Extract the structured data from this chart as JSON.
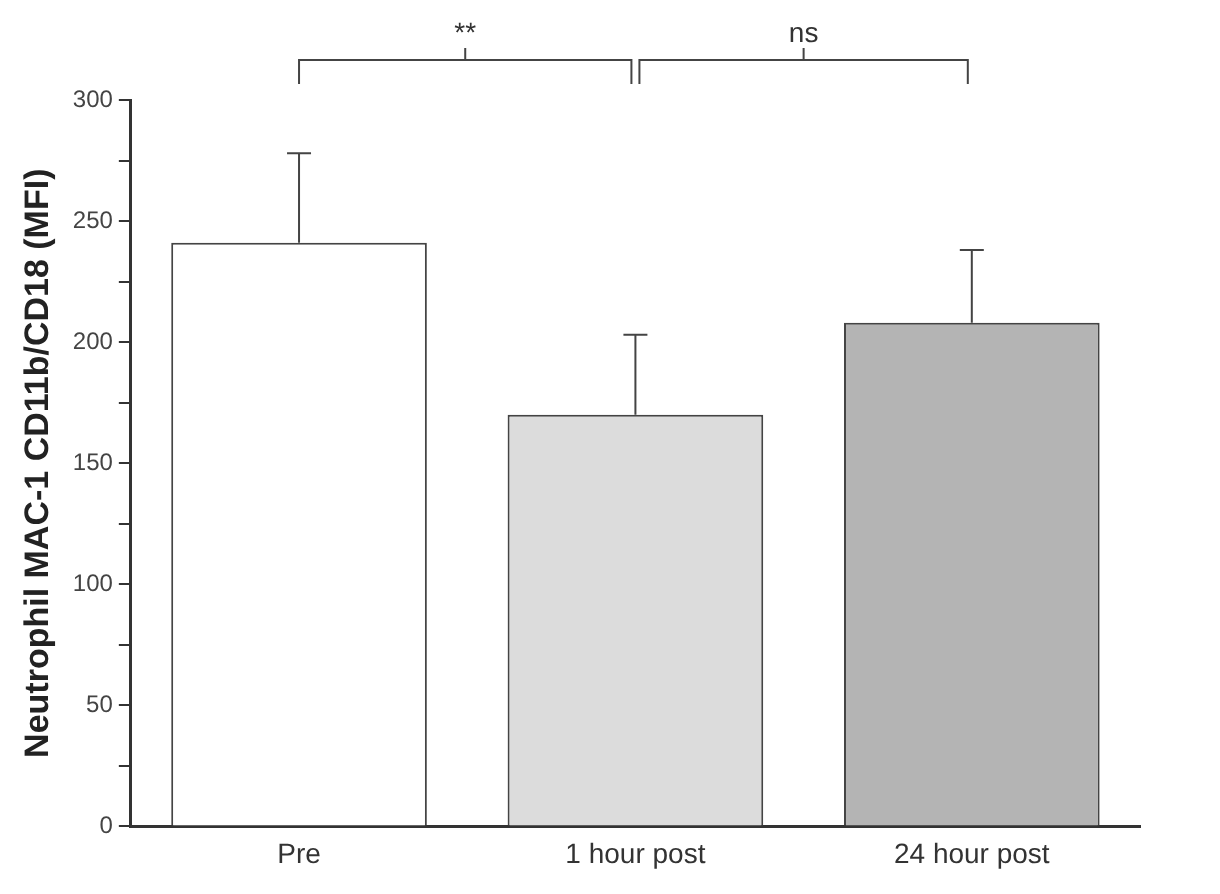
{
  "chart_data": {
    "type": "bar",
    "ylabel": "Neutrophil MAC-1 CD11b/CD18 (MFI)",
    "categories": [
      "Pre",
      "1 hour post",
      "24 hour post"
    ],
    "values": [
      241,
      170,
      208
    ],
    "colors": [
      "#ffffff",
      "#dcdcdc",
      "#b4b4b4"
    ],
    "errors": [
      [
        241,
        278
      ],
      [
        170,
        203
      ],
      [
        208,
        238
      ]
    ],
    "ylim": [
      0,
      300
    ],
    "yticks": [
      0,
      {
        "value": 25,
        "label": null
      },
      50,
      {
        "value": 75,
        "label": null
      },
      100,
      {
        "value": 125,
        "label": null
      },
      150,
      {
        "value": 175,
        "label": null
      },
      200,
      {
        "value": 225,
        "label": null
      },
      250,
      {
        "value": 275,
        "label": null
      },
      300
    ],
    "annotations": [
      "**",
      "ns"
    ],
    "grid": false,
    "legend": false
  }
}
